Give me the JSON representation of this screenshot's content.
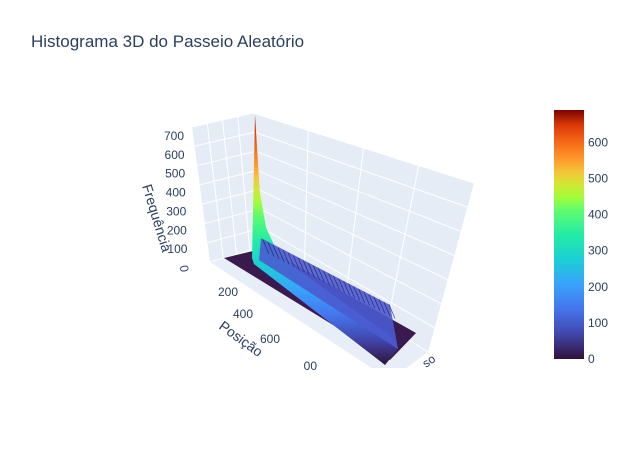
{
  "chart_data": {
    "type": "surface",
    "title": "Histograma 3D do Passeio Aleatório",
    "z_axis": {
      "label": "Frequência",
      "ticks": [
        "0",
        "100",
        "200",
        "300",
        "400",
        "500",
        "600",
        "700"
      ]
    },
    "x_axis": {
      "label": "Posição",
      "ticks": [
        "200",
        "400",
        "600",
        "00"
      ]
    },
    "y_axis": {
      "label": "...",
      "tick_fragment": "so"
    },
    "z_max": 690,
    "colorbar": {
      "ticks": [
        "0",
        "100",
        "200",
        "300",
        "400",
        "500",
        "600"
      ],
      "min": 0,
      "max": 690
    },
    "peak_profile": [
      {
        "position": 0,
        "frequency": 690
      },
      {
        "position": 20,
        "frequency": 330
      },
      {
        "position": 50,
        "frequency": 180
      },
      {
        "position": 100,
        "frequency": 110
      },
      {
        "position": 200,
        "frequency": 80
      },
      {
        "position": 400,
        "frequency": 65
      },
      {
        "position": 600,
        "frequency": 55
      },
      {
        "position": 800,
        "frequency": 45
      }
    ]
  }
}
